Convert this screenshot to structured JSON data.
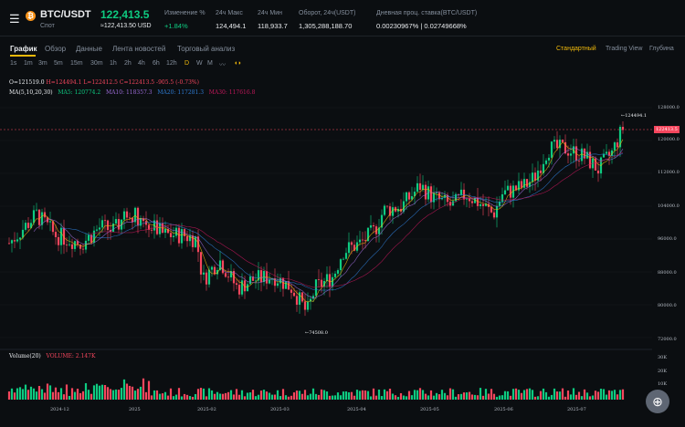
{
  "header": {
    "pair": "BTC/USDT",
    "market": "Спот",
    "price": "122,413.5",
    "price_usd": "≈122,413.50 USD",
    "stats": [
      {
        "label": "Изменение %",
        "value": "+1.84%"
      },
      {
        "label": "24ч Макс",
        "value": "124,494.1"
      },
      {
        "label": "24ч Мин",
        "value": "118,933.7"
      },
      {
        "label": "Оборот, 24ч(USDT)",
        "value": "1,305,288,188.70"
      },
      {
        "label": "Дневная проц. ставка(BTC/USDT)",
        "value": "0.00230967% | 0.02749668%"
      }
    ]
  },
  "tabs": [
    "График",
    "Обзор",
    "Данные",
    "Лента новостей",
    "Торговый анализ"
  ],
  "views": [
    "Стандартный",
    "Trading View",
    "Глубина"
  ],
  "intervals": [
    "1s",
    "1m",
    "3m",
    "5m",
    "15m",
    "30m",
    "1h",
    "2h",
    "4h",
    "6h",
    "12h",
    "D",
    "W",
    "M"
  ],
  "ohlc": {
    "o": "O=121519.0",
    "h": "H=124494.1",
    "l": "L=122412.5",
    "c": "C=122413.5",
    "chg": "-905.5 (-0.73%)"
  },
  "ma": {
    "label": "MA(5,10,20,30)",
    "ma5": "MA5: 120774.2",
    "ma10": "MA10: 118357.3",
    "ma20": "MA20: 117281.3",
    "ma30": "MA30: 117616.8"
  },
  "volume": {
    "label": "Volume(20)",
    "value": "VOLUME: 2.147K"
  },
  "price_axis": [
    "128000.0",
    "120000.0",
    "112000.0",
    "104000.0",
    "96000.0",
    "88000.0",
    "80000.0",
    "72000.0"
  ],
  "volume_axis": [
    "30K",
    "20K",
    "10K"
  ],
  "time_axis": [
    "2024-12",
    "2025",
    "2025-02",
    "2025-03",
    "2025-04",
    "2025-05",
    "2025-06",
    "2025-07"
  ],
  "current_price_tag": "122413.5",
  "high_marker": "124494.1",
  "low_marker": "74508.0",
  "colors": {
    "up": "#0ecb81",
    "down": "#f6465d",
    "accent": "#f0b90b",
    "ma5": "#f0b90b",
    "ma10": "#9b6bd6",
    "ma20": "#2e7ad1",
    "ma30": "#c2185b"
  },
  "zoom_icon": "zoom-in-icon",
  "chart_data": {
    "type": "candlestick",
    "xlabel": "",
    "ylabel": "",
    "ylim": [
      72000,
      128000
    ],
    "x": [
      "2024-12",
      "2025",
      "2025-02",
      "2025-03",
      "2025-04",
      "2025-05",
      "2025-06",
      "2025-07"
    ],
    "close_at_month_start": [
      96500,
      94000,
      101500,
      84000,
      82500,
      95000,
      104500,
      107500
    ],
    "current_close": 122413.5,
    "high": 124494.1,
    "low": 74508.0
  }
}
